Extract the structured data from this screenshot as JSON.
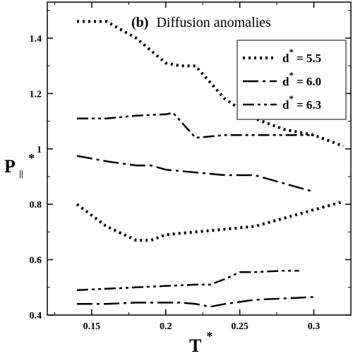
{
  "chart_data": {
    "type": "line",
    "title_tag": "(b)",
    "title": "Diffusion anomalies",
    "xlabel": "T",
    "xlabel_sup": "*",
    "ylabel": "P",
    "ylabel_sub": "||",
    "ylabel_sup": "*",
    "xlim": [
      0.12,
      0.325
    ],
    "ylim": [
      0.4,
      1.53
    ],
    "xticks": [
      0.15,
      0.2,
      0.25,
      0.3
    ],
    "xtick_labels": [
      "0.15",
      "0.2",
      "0.25",
      "0.3"
    ],
    "yticks": [
      0.4,
      0.6,
      0.8,
      1.0,
      1.2,
      1.4
    ],
    "ytick_labels": [
      "0.4",
      "0.6",
      "0.8",
      "1",
      "1.2",
      "1.4"
    ],
    "grid": false,
    "legend_position": "top-right",
    "series": [
      {
        "name": "d* = 5.5",
        "legend": {
          "base": "d",
          "sup": "*",
          "value": "= 5.5"
        },
        "style": "dotted",
        "segments": [
          {
            "x": [
              0.14,
              0.16,
              0.18,
              0.2,
              0.21,
              0.22,
              0.24,
              0.26,
              0.28,
              0.3,
              0.32
            ],
            "y": [
              1.46,
              1.46,
              1.4,
              1.31,
              1.3,
              1.3,
              1.18,
              1.11,
              1.07,
              1.05,
              1.01
            ]
          },
          {
            "x": [
              0.14,
              0.16,
              0.18,
              0.19,
              0.2,
              0.22,
              0.24,
              0.26,
              0.28,
              0.3,
              0.32
            ],
            "y": [
              0.8,
              0.72,
              0.67,
              0.67,
              0.69,
              0.7,
              0.71,
              0.72,
              0.75,
              0.78,
              0.81
            ]
          }
        ]
      },
      {
        "name": "d* = 6.0",
        "legend": {
          "base": "d",
          "sup": "*",
          "value": "= 6.0"
        },
        "style": "dash-dot",
        "segments": [
          {
            "x": [
              0.14,
              0.16,
              0.18,
              0.19,
              0.2,
              0.22,
              0.24,
              0.26,
              0.28,
              0.3
            ],
            "y": [
              0.975,
              0.955,
              0.94,
              0.94,
              0.925,
              0.915,
              0.905,
              0.905,
              0.875,
              0.845
            ]
          },
          {
            "x": [
              0.14,
              0.16,
              0.18,
              0.2,
              0.21,
              0.22,
              0.23,
              0.24,
              0.26,
              0.28,
              0.3
            ],
            "y": [
              0.44,
              0.44,
              0.445,
              0.445,
              0.445,
              0.44,
              0.43,
              0.44,
              0.455,
              0.46,
              0.465
            ]
          }
        ]
      },
      {
        "name": "d* = 6.3",
        "legend": {
          "base": "d",
          "sup": "*",
          "value": "= 6.3"
        },
        "style": "dash-dot-dot",
        "segments": [
          {
            "x": [
              0.14,
              0.15,
              0.16,
              0.18,
              0.2,
              0.205,
              0.215,
              0.22,
              0.24,
              0.26,
              0.28,
              0.3
            ],
            "y": [
              1.11,
              1.11,
              1.11,
              1.12,
              1.125,
              1.13,
              1.07,
              1.04,
              1.05,
              1.05,
              1.05,
              1.05
            ]
          },
          {
            "x": [
              0.14,
              0.16,
              0.18,
              0.2,
              0.22,
              0.23,
              0.24,
              0.25,
              0.26,
              0.28,
              0.29
            ],
            "y": [
              0.49,
              0.495,
              0.5,
              0.505,
              0.51,
              0.51,
              0.53,
              0.555,
              0.555,
              0.56,
              0.56
            ]
          }
        ]
      }
    ]
  }
}
